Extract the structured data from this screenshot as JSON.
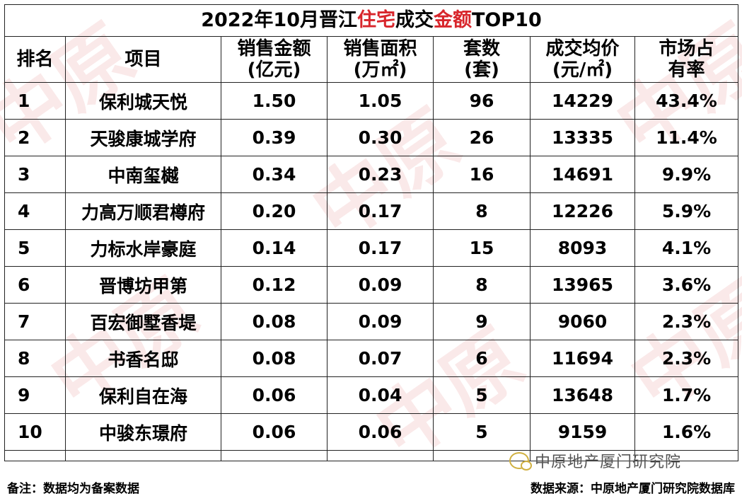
{
  "title": {
    "part1": "2022年10月晋江",
    "part2": "住宅",
    "part3": "成交",
    "part4": "金额",
    "part5": "TOP10",
    "accent_color": "#d8262c"
  },
  "headers": {
    "rank": "排名",
    "project": "项目",
    "sales_amount": [
      "销售金额",
      "(亿元)"
    ],
    "sales_area": [
      "销售面积",
      "(万㎡)"
    ],
    "units": [
      "套数",
      "(套)"
    ],
    "avg_price": [
      "成交均价",
      "(元/㎡)"
    ],
    "market_share": [
      "市场占",
      "有率"
    ]
  },
  "rows": [
    {
      "rank": "1",
      "project": "保利城天悦",
      "amount": "1.50",
      "area": "1.05",
      "units": "96",
      "price": "14229",
      "share": "43.4%"
    },
    {
      "rank": "2",
      "project": "天骏康城学府",
      "amount": "0.39",
      "area": "0.30",
      "units": "26",
      "price": "13335",
      "share": "11.4%"
    },
    {
      "rank": "3",
      "project": "中南玺樾",
      "amount": "0.34",
      "area": "0.23",
      "units": "16",
      "price": "14691",
      "share": "9.9%"
    },
    {
      "rank": "4",
      "project": "力高万顺君樽府",
      "amount": "0.20",
      "area": "0.17",
      "units": "8",
      "price": "12226",
      "share": "5.9%"
    },
    {
      "rank": "5",
      "project": "力标水岸豪庭",
      "amount": "0.14",
      "area": "0.17",
      "units": "15",
      "price": "8093",
      "share": "4.1%"
    },
    {
      "rank": "6",
      "project": "晋博坊甲第",
      "amount": "0.12",
      "area": "0.09",
      "units": "8",
      "price": "13965",
      "share": "3.6%"
    },
    {
      "rank": "7",
      "project": "百宏御墅香堤",
      "amount": "0.08",
      "area": "0.09",
      "units": "9",
      "price": "9060",
      "share": "2.3%"
    },
    {
      "rank": "8",
      "project": "书香名邸",
      "amount": "0.08",
      "area": "0.07",
      "units": "6",
      "price": "11694",
      "share": "2.3%"
    },
    {
      "rank": "9",
      "project": "保利自在海",
      "amount": "0.06",
      "area": "0.04",
      "units": "5",
      "price": "13648",
      "share": "1.7%"
    },
    {
      "rank": "10",
      "project": "中骏东璟府",
      "amount": "0.06",
      "area": "0.06",
      "units": "5",
      "price": "9159",
      "share": "1.6%"
    }
  ],
  "footer": {
    "note": "备注：数据均为备案数据",
    "source": "数据来源：中原地产厦门研究院数据库"
  },
  "overlay": {
    "account": "中原地产厦门研究院"
  }
}
